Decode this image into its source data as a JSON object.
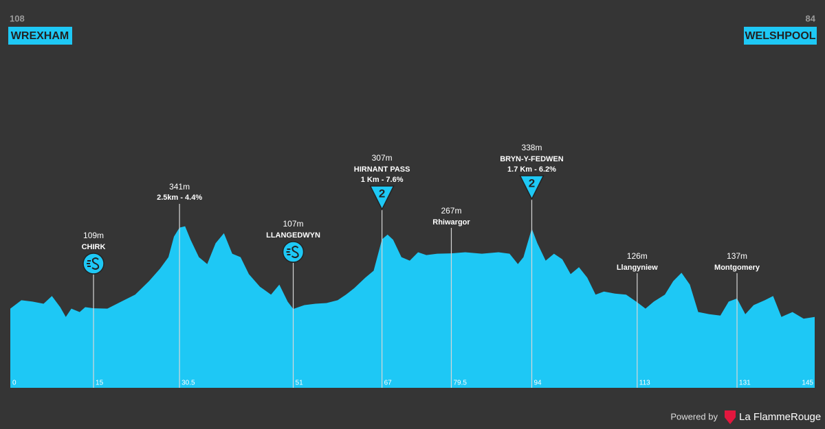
{
  "chart_data": {
    "type": "area",
    "color": "#1ec8f5",
    "start": {
      "elevation": 108,
      "name": "WREXHAM"
    },
    "finish": {
      "elevation": 84,
      "name": "WELSHPOOL"
    },
    "xlim": [
      0,
      145
    ],
    "ylim": [
      -120,
      670
    ],
    "xticks": [
      0,
      15,
      30.5,
      51,
      67,
      79.5,
      94,
      113,
      131,
      145
    ],
    "x": [
      0,
      2,
      4,
      6,
      7.5,
      9,
      10,
      11,
      12.5,
      13.5,
      15,
      17.5,
      20,
      22.5,
      25,
      27,
      28.5,
      29.5,
      30.5,
      31.5,
      32.5,
      34,
      35.5,
      37,
      38.5,
      40,
      41.5,
      43,
      45,
      47,
      48.5,
      50,
      51,
      53,
      55,
      57,
      59,
      60.5,
      62,
      64,
      65.5,
      67,
      68,
      69,
      70.5,
      72,
      73.5,
      75,
      77,
      79.5,
      82,
      85,
      88,
      90,
      91.5,
      92.5,
      94,
      95,
      96.5,
      98,
      99.5,
      101,
      102.5,
      104,
      105.5,
      107,
      109,
      111,
      113,
      114.5,
      116,
      118,
      119.5,
      121,
      122.5,
      124,
      126,
      128,
      129.5,
      131,
      132.5,
      134,
      136,
      137.5,
      139,
      141,
      143,
      145
    ],
    "values": [
      108,
      132,
      128,
      122,
      144,
      112,
      84,
      108,
      98,
      112,
      109,
      108,
      128,
      148,
      187,
      223,
      256,
      315,
      341,
      345,
      306,
      256,
      236,
      296,
      325,
      266,
      256,
      207,
      171,
      148,
      177,
      128,
      107,
      118,
      122,
      124,
      132,
      148,
      167,
      197,
      217,
      307,
      321,
      306,
      256,
      246,
      270,
      262,
      266,
      267,
      270,
      266,
      270,
      266,
      236,
      256,
      338,
      296,
      246,
      266,
      250,
      207,
      227,
      197,
      148,
      157,
      151,
      148,
      126,
      108,
      128,
      148,
      187,
      211,
      177,
      98,
      92,
      88,
      128,
      137,
      92,
      118,
      132,
      144,
      84,
      98,
      79,
      84
    ],
    "waypoints": [
      {
        "km": 15,
        "elevation": 109,
        "elevation_label": "109m",
        "name": "CHIRK"
      },
      {
        "km": 30.5,
        "elevation": 341,
        "elevation_label": "341m",
        "detail": "2.5km - 4.4%"
      },
      {
        "km": 51,
        "elevation": 107,
        "elevation_label": "107m",
        "name": "LLANGEDWYN"
      },
      {
        "km": 67,
        "elevation": 307,
        "elevation_label": "307m",
        "name": "HIRNANT PASS",
        "detail": "1 Km - 7.6%",
        "category": "2"
      },
      {
        "km": 79.5,
        "elevation": 267,
        "elevation_label": "267m",
        "name": "Rhiwargor"
      },
      {
        "km": 94,
        "elevation": 338,
        "elevation_label": "338m",
        "name": "BRYN-Y-FEDWEN",
        "detail": "1.7 Km - 6.2%",
        "category": "2"
      },
      {
        "km": 113,
        "elevation": 126,
        "elevation_label": "126m",
        "name": "Llangyniew"
      },
      {
        "km": 131,
        "elevation": 137,
        "elevation_label": "137m",
        "name": "Montgomery"
      }
    ]
  },
  "footer": {
    "powered_by": "Powered by",
    "brand": "La FlammeRouge"
  }
}
